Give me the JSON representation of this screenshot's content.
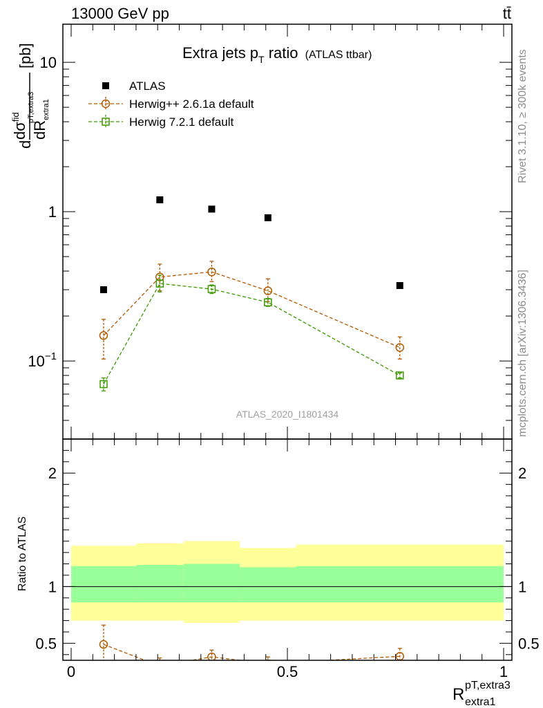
{
  "header": {
    "energy_label": "13000 GeV pp",
    "process_label": "tt̄"
  },
  "side_labels": {
    "rivet": "Rivet 3.1.10, ≥ 300k events",
    "mcplots": "mcplots.cern.ch [arXiv:1306.3436]"
  },
  "chart_data": [
    {
      "panel": "main",
      "type": "scatter",
      "title": "Extra jets p",
      "title_sub": "T",
      "title_tail": " ratio",
      "title_paren": "(ATLAS ttbar)",
      "watermark": "ATLAS_2020_I1801434",
      "ylabel": {
        "prefix": "d",
        "num": "dσ",
        "num_sup": "fid",
        "num_sub": "pT,extra3",
        "den": "dR",
        "den_sub": "extra1",
        "unit": "[pb]"
      },
      "y_scale": "log",
      "xlim": [
        0,
        1
      ],
      "ylim": [
        0.03,
        18
      ],
      "y_tick_labels": [
        {
          "value": 0.1,
          "base": "10",
          "exp": "−1"
        },
        {
          "value": 1,
          "base": "1",
          "exp": ""
        },
        {
          "value": 10,
          "base": "10",
          "exp": ""
        }
      ],
      "legend_position": "top-left",
      "series": [
        {
          "name": "ATLAS",
          "marker": "filled-square",
          "color": "#000000",
          "x": [
            0.075,
            0.205,
            0.325,
            0.455,
            0.76
          ],
          "y": [
            0.3,
            1.2,
            1.04,
            0.91,
            0.32
          ]
        },
        {
          "name": "Herwig++ 2.6.1a default",
          "marker": "open-circle",
          "color": "#b35900",
          "line": "dashed",
          "x": [
            0.075,
            0.205,
            0.325,
            0.455,
            0.76
          ],
          "y": [
            0.148,
            0.365,
            0.395,
            0.295,
            0.123
          ],
          "err_low": [
            0.045,
            0.07,
            0.055,
            0.045,
            0.02
          ],
          "err_high": [
            0.042,
            0.08,
            0.07,
            0.06,
            0.022
          ]
        },
        {
          "name": "Herwig 7.2.1 default",
          "marker": "open-square",
          "color": "#3d9900",
          "line": "dashed",
          "x": [
            0.075,
            0.205,
            0.325,
            0.455,
            0.76
          ],
          "y": [
            0.07,
            0.33,
            0.303,
            0.247,
            0.08
          ],
          "err_low": [
            0.007,
            0.04,
            0.02,
            0.015,
            0.003
          ],
          "err_high": [
            0.007,
            0.045,
            0.02,
            0.015,
            0.003
          ]
        }
      ]
    },
    {
      "panel": "ratio",
      "type": "line",
      "ylabel": "Ratio to ATLAS",
      "xlabel": "R",
      "xlabel_sub": "extra1",
      "xlabel_sup": "pT,extra3",
      "xlim": [
        0,
        1
      ],
      "ylim": [
        0.35,
        2.3
      ],
      "x_ticks": [
        0,
        0.5,
        1
      ],
      "x_tick_labels": [
        "0",
        "0.5",
        "1"
      ],
      "y_ticks": [
        0.5,
        1,
        2
      ],
      "y_tick_labels": [
        "0.5",
        "1",
        "2"
      ],
      "reference_line": 1,
      "bands": [
        {
          "x_low": 0.0,
          "x_high": 0.15,
          "inner": [
            0.86,
            1.18
          ],
          "outer": [
            0.7,
            1.36
          ]
        },
        {
          "x_low": 0.15,
          "x_high": 0.26,
          "inner": [
            0.86,
            1.19
          ],
          "outer": [
            0.7,
            1.38
          ]
        },
        {
          "x_low": 0.26,
          "x_high": 0.39,
          "inner": [
            0.86,
            1.2
          ],
          "outer": [
            0.68,
            1.4
          ]
        },
        {
          "x_low": 0.39,
          "x_high": 0.52,
          "inner": [
            0.86,
            1.17
          ],
          "outer": [
            0.7,
            1.34
          ]
        },
        {
          "x_low": 0.52,
          "x_high": 1.0,
          "inner": [
            0.86,
            1.18
          ],
          "outer": [
            0.7,
            1.37
          ]
        }
      ],
      "band_colors": {
        "inner": "#99ff99",
        "outer": "#ffff99"
      },
      "series": [
        {
          "name": "Herwig++ 2.6.1a default",
          "marker": "open-circle",
          "color": "#b35900",
          "x": [
            0.075,
            0.205,
            0.325,
            0.455,
            0.76
          ],
          "y": [
            0.49,
            0.3,
            0.38,
            0.32,
            0.385
          ],
          "err_low": [
            0.15,
            0.06,
            0.05,
            0.05,
            0.06
          ],
          "err_high": [
            0.17,
            0.07,
            0.06,
            0.06,
            0.07
          ]
        }
      ]
    }
  ]
}
